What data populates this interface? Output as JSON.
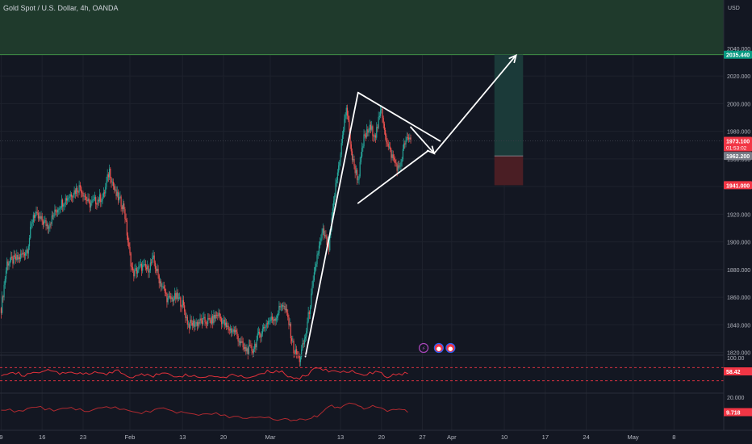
{
  "header": {
    "title": "Gold Spot / U.S. Dollar, 4h, OANDA",
    "currency": "USD"
  },
  "colors": {
    "background": "#131722",
    "grid": "#1e222d",
    "up": "#26a69a",
    "down": "#ef5350",
    "text": "#b2b5be",
    "target_zone": "#1f3a2c",
    "profit_box": "#1b3a39",
    "loss_box": "#4a1e24",
    "rsi_line": "#e0303a",
    "indicator2_line": "#b02a30"
  },
  "price_badges": [
    {
      "label": "2035.440",
      "kind": "target",
      "color": "#089981"
    },
    {
      "label": "1973.100",
      "sub": "01:53:02",
      "kind": "last",
      "color": "#f23645"
    },
    {
      "label": "1962.200",
      "kind": "entry",
      "color": "#787b86"
    },
    {
      "label": "1941.000",
      "kind": "stop",
      "color": "#f23645"
    }
  ],
  "event_icons": [
    {
      "name": "earnings-lightning-icon",
      "glyph": "⚡"
    },
    {
      "name": "us-economic-event-icon",
      "glyph": "●"
    },
    {
      "name": "us-economic-event-icon-2",
      "glyph": "●"
    }
  ],
  "indicators": {
    "rsi": {
      "top_label": "100.00",
      "value_label": "58.42"
    },
    "second": {
      "top_label": "20.000",
      "value_label": "9.718"
    }
  },
  "chart_data": [
    {
      "type": "candlestick",
      "title": "Gold Spot / U.S. Dollar, 4h, OANDA",
      "price_axis": {
        "ticks": [
          "2040.000",
          "2020.000",
          "2000.000",
          "1980.000",
          "1960.000",
          "1940.000",
          "1920.000",
          "1900.000",
          "1880.000",
          "1860.000",
          "1840.000",
          "1820.000"
        ],
        "ylim": [
          1818,
          2075
        ]
      },
      "time_axis": {
        "ticks": [
          "9",
          "16",
          "23",
          "Feb",
          "13",
          "20",
          "Mar",
          "13",
          "20",
          "27",
          "Apr",
          "10",
          "17",
          "24",
          "May",
          "8"
        ],
        "tick_values": [
          0,
          7,
          14,
          22,
          31,
          38,
          46,
          58,
          65,
          72,
          77,
          86,
          93,
          100,
          108,
          115
        ],
        "xlim": [
          -0.2,
          123.5
        ]
      },
      "price_path": [
        [
          0,
          1852
        ],
        [
          1,
          1885
        ],
        [
          3,
          1888
        ],
        [
          4.5,
          1895
        ],
        [
          5.5,
          1920
        ],
        [
          7,
          1915
        ],
        [
          8,
          1912
        ],
        [
          10,
          1927
        ],
        [
          12,
          1935
        ],
        [
          13.5,
          1940
        ],
        [
          15,
          1927
        ],
        [
          17.5,
          1933
        ],
        [
          18.5,
          1952
        ],
        [
          19.5,
          1935
        ],
        [
          21,
          1925
        ],
        [
          21.8,
          1895
        ],
        [
          22.5,
          1877
        ],
        [
          24,
          1882
        ],
        [
          25,
          1880
        ],
        [
          26,
          1887
        ],
        [
          27,
          1873
        ],
        [
          28.5,
          1858
        ],
        [
          30,
          1860
        ],
        [
          31,
          1855
        ],
        [
          32,
          1840
        ],
        [
          34,
          1842
        ],
        [
          36,
          1843
        ],
        [
          37,
          1848
        ],
        [
          38.5,
          1838
        ],
        [
          40,
          1835
        ],
        [
          41.5,
          1822
        ],
        [
          43,
          1822
        ],
        [
          44,
          1832
        ],
        [
          45.5,
          1842
        ],
        [
          47,
          1846
        ],
        [
          48,
          1856
        ],
        [
          49,
          1845
        ],
        [
          50,
          1822
        ],
        [
          51,
          1815
        ],
        [
          52,
          1832
        ],
        [
          53,
          1860
        ],
        [
          54,
          1890
        ],
        [
          55,
          1907
        ],
        [
          56,
          1895
        ],
        [
          57,
          1935
        ],
        [
          58,
          1965
        ],
        [
          59,
          1998
        ],
        [
          60,
          1960
        ],
        [
          61,
          1945
        ],
        [
          62,
          1975
        ],
        [
          63,
          1982
        ],
        [
          64,
          1978
        ],
        [
          65,
          1996
        ],
        [
          66,
          1970
        ],
        [
          67,
          1960
        ],
        [
          68,
          1952
        ],
        [
          69,
          1972
        ],
        [
          70,
          1975
        ]
      ],
      "trendlines": [
        {
          "name": "rally-leg",
          "points": [
            [
              52,
              1817
            ],
            [
              61,
              2008
            ]
          ]
        },
        {
          "name": "pattern-upper",
          "points": [
            [
              61,
              2008
            ],
            [
              75,
              1973
            ]
          ]
        },
        {
          "name": "pattern-lower",
          "points": [
            [
              61,
              1928
            ],
            [
              73,
              1966
            ]
          ]
        },
        {
          "name": "projection-down-arrow",
          "points": [
            [
              70,
              1983
            ],
            [
              74,
              1964
            ]
          ]
        },
        {
          "name": "projection-up-arrow",
          "points": [
            [
              74,
              1964
            ],
            [
              88,
              2035
            ]
          ]
        }
      ],
      "long_position": {
        "start_x": 84.3,
        "end_x": 89.2,
        "target": 2035.44,
        "entry": 1962.2,
        "stop": 1941.0
      },
      "target_zone": {
        "from": 2035.44,
        "to": 2075
      },
      "current_price": 1973.1
    },
    {
      "type": "line",
      "name": "RSI",
      "ylim": [
        0,
        100
      ],
      "bands": [
        70,
        30
      ],
      "value": 58.42,
      "x": [
        0,
        2,
        4,
        6,
        8,
        10,
        12,
        14,
        16,
        18,
        20,
        22,
        24,
        26,
        28,
        30,
        32,
        34,
        36,
        38,
        40,
        42,
        44,
        46,
        48,
        50,
        52,
        54,
        56,
        58,
        60,
        62,
        64,
        66,
        68,
        70
      ],
      "y": [
        50,
        58,
        45,
        55,
        60,
        52,
        57,
        48,
        55,
        50,
        62,
        38,
        50,
        46,
        52,
        44,
        48,
        40,
        46,
        42,
        50,
        38,
        52,
        60,
        55,
        33,
        45,
        72,
        60,
        55,
        62,
        50,
        58,
        44,
        48,
        58
      ]
    },
    {
      "type": "line",
      "name": "secondary",
      "ylim": [
        0,
        20
      ],
      "value": 9.718,
      "x": [
        0,
        3,
        6,
        9,
        12,
        15,
        18,
        21,
        24,
        27,
        30,
        33,
        36,
        39,
        42,
        45,
        48,
        50,
        52,
        54,
        56,
        58,
        60,
        62,
        64,
        66,
        68,
        70
      ],
      "y": [
        12,
        10,
        13,
        11,
        12,
        10,
        14,
        11,
        9,
        12,
        10,
        8,
        9,
        7,
        6,
        6,
        5,
        4,
        5,
        7,
        14,
        13,
        16,
        12,
        14,
        11,
        12,
        9
      ]
    }
  ]
}
